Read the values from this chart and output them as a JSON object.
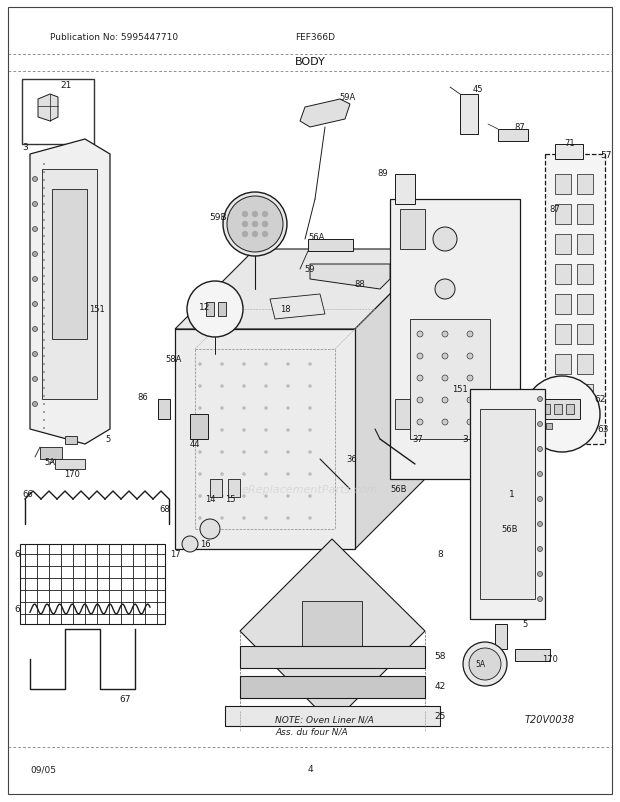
{
  "title": "BODY",
  "pub_no": "Publication No: 5995447710",
  "model": "FEF366D",
  "date": "09/05",
  "page": "4",
  "ref_code": "T20V0038",
  "note_line1": "NOTE: Oven Liner N/A",
  "note_line2": "Ass. du four N/A",
  "bg_color": "#ffffff",
  "lc": "#1a1a1a",
  "fig_width": 6.2,
  "fig_height": 8.03,
  "dpi": 100
}
